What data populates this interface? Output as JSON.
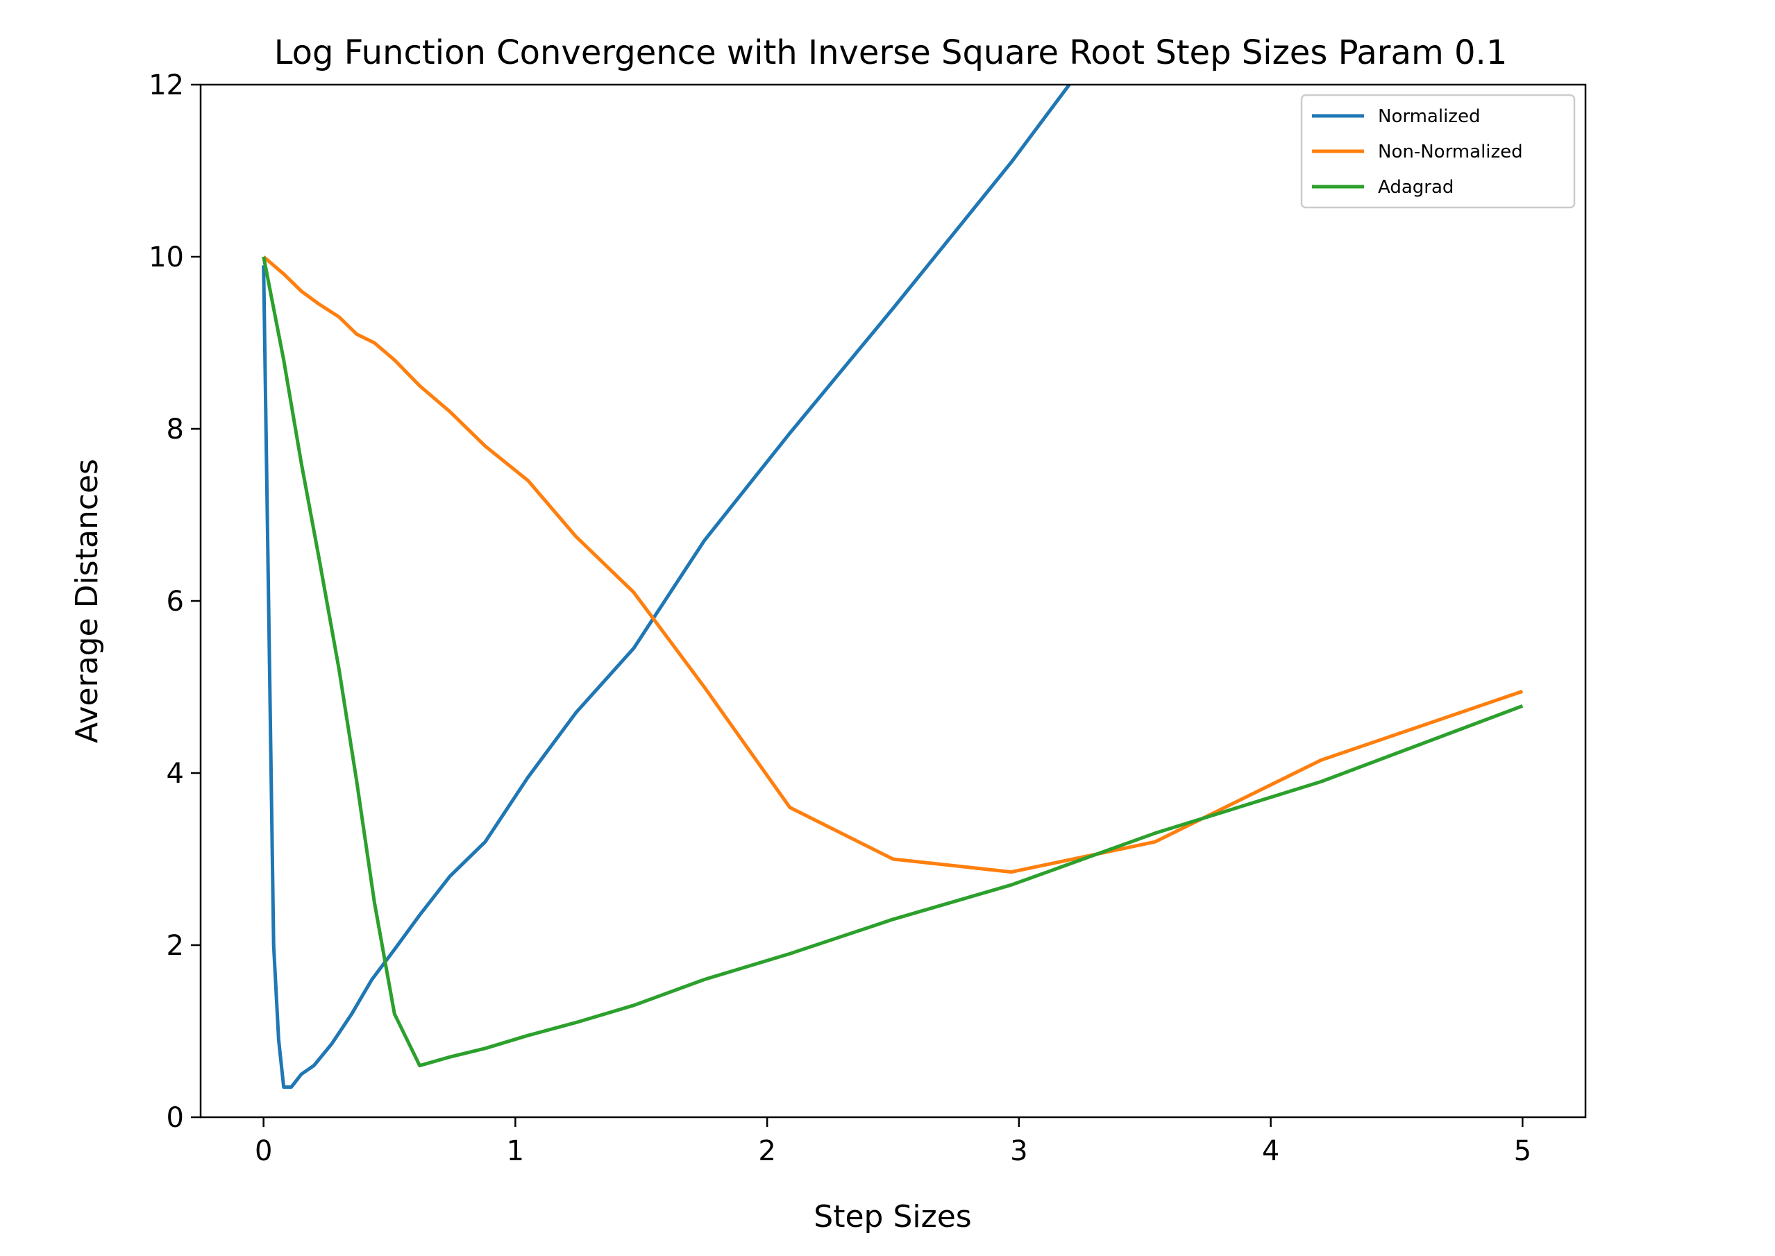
{
  "chart_data": {
    "type": "line",
    "title": "Log Function Convergence with Inverse Square Root Step Sizes Param 0.1",
    "xlabel": "Step Sizes",
    "ylabel": "Average Distances",
    "xlim": [
      -0.25,
      5.25
    ],
    "ylim": [
      0,
      12
    ],
    "xticks": [
      0,
      1,
      2,
      3,
      4,
      5
    ],
    "yticks": [
      0,
      2,
      4,
      6,
      8,
      10,
      12
    ],
    "grid": false,
    "legend_position": "top-right",
    "series": [
      {
        "name": "Normalized",
        "color": "#1f77b4",
        "x": [
          0.0,
          0.02,
          0.04,
          0.06,
          0.08,
          0.11,
          0.15,
          0.2,
          0.27,
          0.35,
          0.43,
          0.52,
          0.62,
          0.74,
          0.88,
          1.05,
          1.24,
          1.47,
          1.75,
          2.09,
          2.5,
          2.97,
          3.2
        ],
        "y": [
          9.9,
          6.0,
          2.0,
          0.9,
          0.35,
          0.35,
          0.5,
          0.6,
          0.85,
          1.2,
          1.6,
          1.95,
          2.35,
          2.8,
          3.2,
          3.95,
          4.7,
          5.45,
          6.7,
          7.95,
          9.4,
          11.1,
          12.0
        ]
      },
      {
        "name": "Non-Normalized",
        "color": "#ff7f0e",
        "x": [
          0.0,
          0.08,
          0.15,
          0.22,
          0.3,
          0.37,
          0.44,
          0.52,
          0.62,
          0.74,
          0.88,
          1.05,
          1.24,
          1.47,
          1.75,
          2.09,
          2.5,
          2.97,
          3.54,
          4.2,
          5.0
        ],
        "y": [
          10.0,
          9.8,
          9.6,
          9.45,
          9.3,
          9.1,
          9.0,
          8.8,
          8.5,
          8.2,
          7.8,
          7.4,
          6.75,
          6.1,
          5.0,
          3.6,
          3.0,
          2.85,
          3.2,
          4.15,
          4.95
        ]
      },
      {
        "name": "Adagrad",
        "color": "#2ca02c",
        "x": [
          0.0,
          0.08,
          0.15,
          0.22,
          0.3,
          0.37,
          0.44,
          0.52,
          0.62,
          0.74,
          0.88,
          1.05,
          1.24,
          1.47,
          1.75,
          2.09,
          2.5,
          2.97,
          3.54,
          4.2,
          5.0
        ],
        "y": [
          10.0,
          8.8,
          7.6,
          6.5,
          5.2,
          3.9,
          2.5,
          1.2,
          0.6,
          0.7,
          0.8,
          0.95,
          1.1,
          1.3,
          1.6,
          1.9,
          2.3,
          2.7,
          3.3,
          3.9,
          4.78
        ]
      }
    ]
  }
}
